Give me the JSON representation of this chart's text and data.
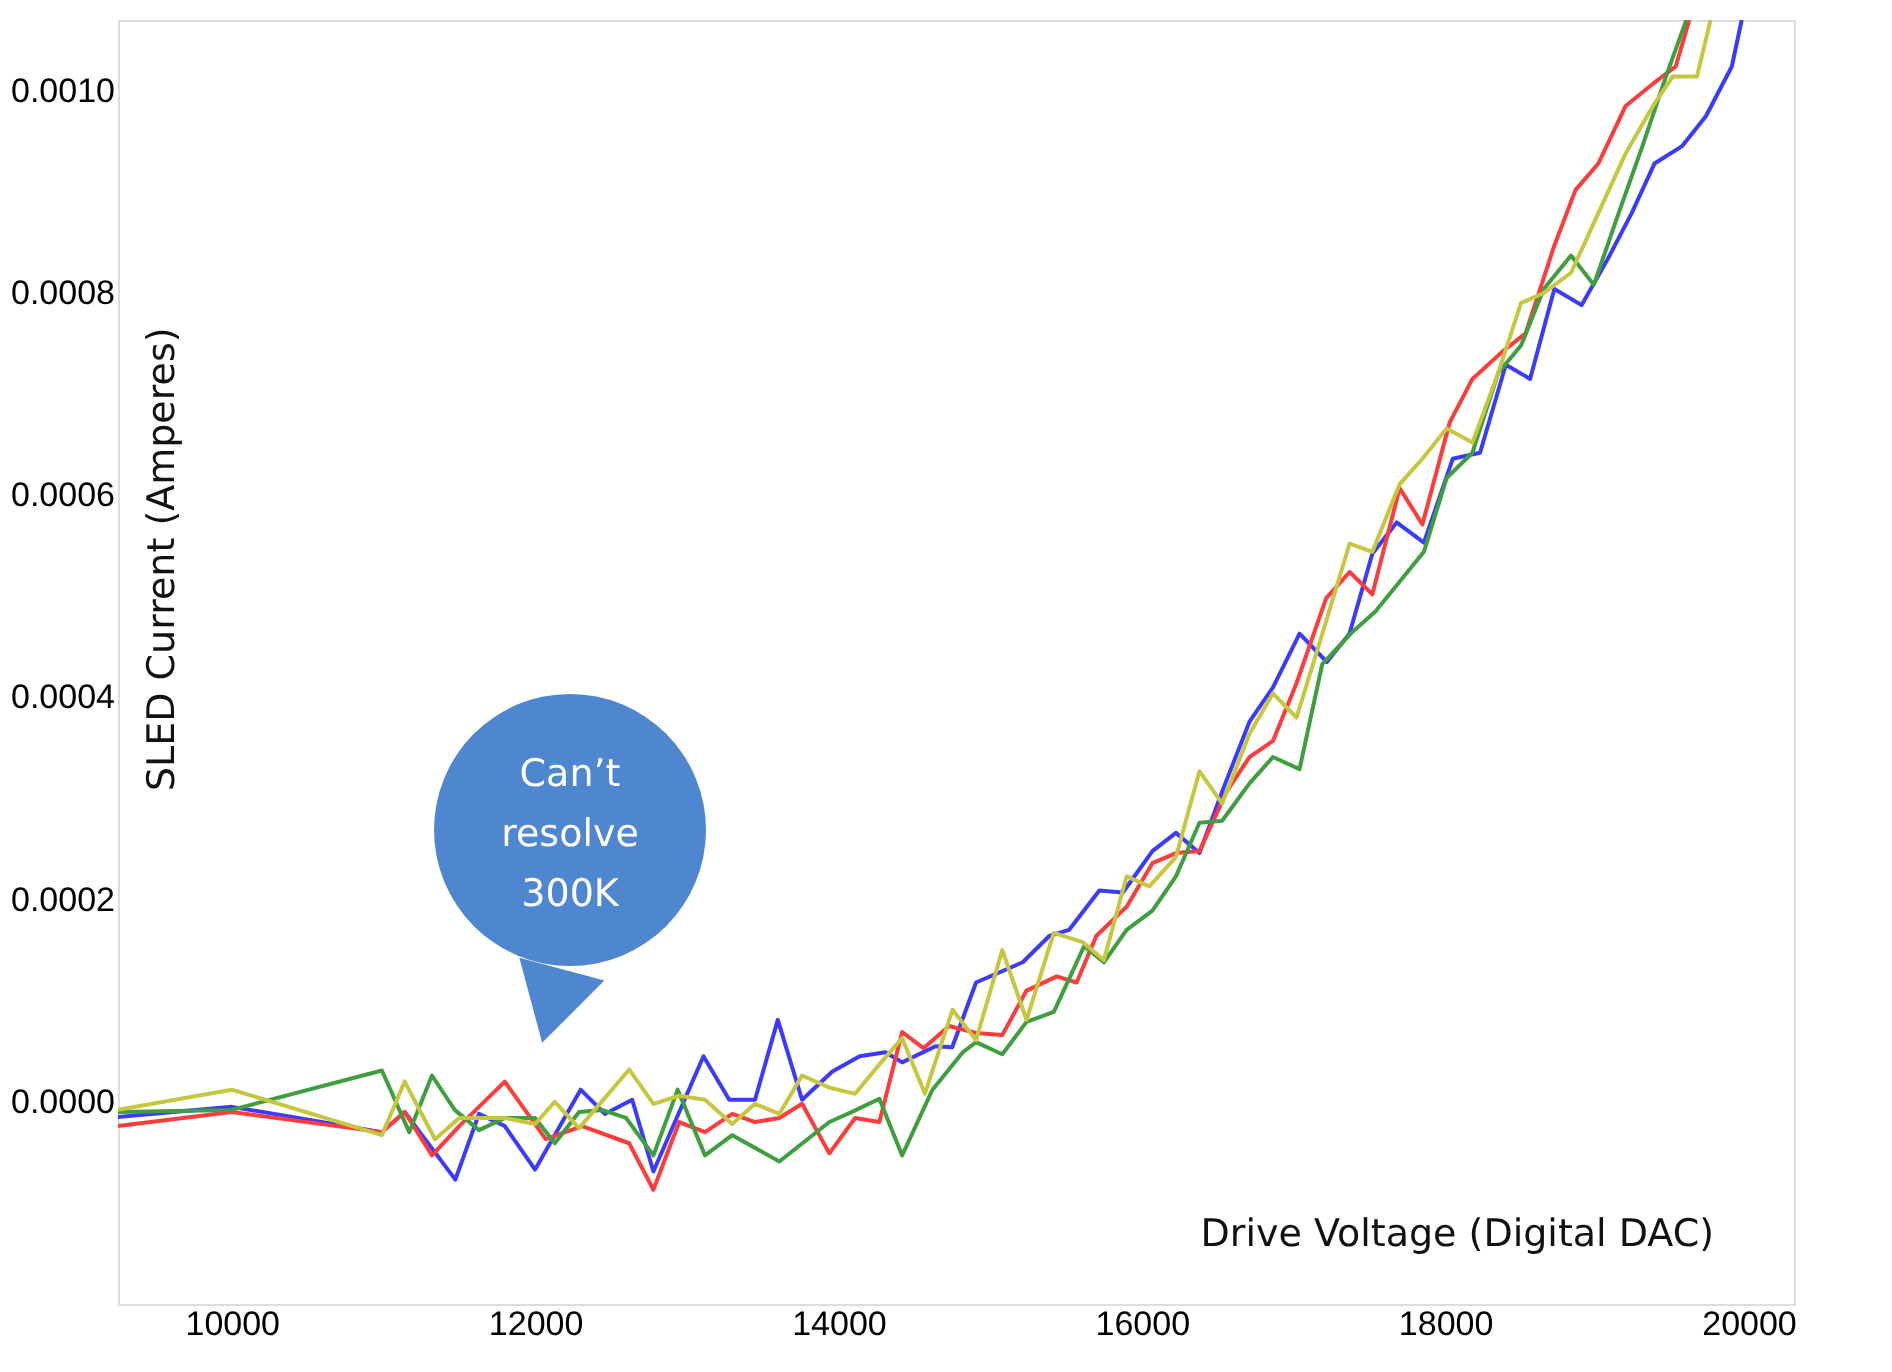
{
  "chart_data": {
    "type": "line",
    "xlabel": "Drive Voltage (Digital DAC)",
    "ylabel": "SLED Current (Amperes)",
    "annotations": [
      "Can’t resolve 300K"
    ],
    "xlim": [
      9250,
      20300
    ],
    "xticks": [
      10000,
      12000,
      14000,
      16000,
      18000,
      20000
    ],
    "ylim": [
      -0.0002,
      0.00107
    ],
    "yticks": [
      {
        "value": 0,
        "label": "0.0000"
      },
      {
        "value": 0.0002,
        "label": "0.0002"
      },
      {
        "value": 0.0004,
        "label": "0.0004"
      },
      {
        "value": 0.0006,
        "label": "0.0006"
      },
      {
        "value": 0.0008,
        "label": "0.0008"
      },
      {
        "value": 0.001,
        "label": "0.0010"
      }
    ],
    "grid": false,
    "marker": "none",
    "line_style": "solid",
    "series": [
      {
        "color": "#3b3bff",
        "x": [
          9250,
          10000,
          10990,
          11140,
          11474,
          11630,
          11800,
          12000,
          12300,
          12460,
          12640,
          12780,
          13110,
          13280,
          13450,
          13600,
          13760,
          13960,
          14140,
          14310,
          14420,
          14640,
          14750,
          14907,
          15215,
          15390,
          15520,
          15720,
          15875,
          16070,
          16225,
          16380,
          16530,
          16710,
          16865,
          17040,
          17220,
          17369,
          17520,
          17680,
          17860,
          18050,
          18230,
          18400,
          18560,
          18720,
          18900,
          19070,
          19230,
          19380,
          19560,
          19720,
          19890,
          19955
        ],
        "values": [
          -1.5e-05,
          -5e-06,
          -3e-05,
          -1e-05,
          -7.7e-05,
          -1.2e-05,
          -2.4e-05,
          -6.7e-05,
          1.2e-05,
          -1.2e-05,
          2e-06,
          -6.9e-05,
          4.5e-05,
          2e-06,
          2e-06,
          8.1e-05,
          2e-06,
          3e-05,
          4.5e-05,
          4.9e-05,
          3.9e-05,
          5.5e-05,
          5.4e-05,
          0.000118,
          0.000138,
          0.000164,
          0.00017,
          0.000209,
          0.000207,
          0.000248,
          0.000266,
          0.000246,
          0.000307,
          0.000376,
          0.00041,
          0.000463,
          0.000435,
          0.000463,
          0.000542,
          0.000573,
          0.000553,
          0.000636,
          0.000642,
          0.000729,
          0.000715,
          0.000804,
          0.000788,
          0.000833,
          0.000879,
          0.000928,
          0.000945,
          0.000975,
          0.001024,
          0.00107
        ]
      },
      {
        "color": "#ff3b3b",
        "x": [
          9250,
          10000,
          10990,
          11140,
          11320,
          11500,
          11800,
          12070,
          12310,
          12620,
          12780,
          12950,
          13120,
          13300,
          13450,
          13610,
          13760,
          13940,
          14110,
          14270,
          14420,
          14560,
          14730,
          14907,
          15080,
          15240,
          15440,
          15570,
          15700,
          15900,
          16070,
          16225,
          16380,
          16560,
          16710,
          16865,
          17020,
          17215,
          17370,
          17520,
          17700,
          17850,
          18030,
          18180,
          18370,
          18530,
          18720,
          18860,
          19010,
          19190,
          19370,
          19520,
          19610
        ],
        "values": [
          -2.4e-05,
          -1e-05,
          -3e-05,
          -1e-05,
          -5.3e-05,
          -2.4e-05,
          2e-05,
          -3.7e-05,
          -2.4e-05,
          -4.1e-05,
          -8.7e-05,
          -2e-05,
          -3e-05,
          -1.2e-05,
          -2e-05,
          -1.6e-05,
          -2e-06,
          -5.1e-05,
          -1.6e-05,
          -2e-05,
          6.9e-05,
          5.3e-05,
          7.5e-05,
          6.8e-05,
          6.6e-05,
          0.00011,
          0.000124,
          0.000118,
          0.000164,
          0.000193,
          0.000236,
          0.000246,
          0.000248,
          0.000307,
          0.000341,
          0.000357,
          0.000414,
          0.000498,
          0.000524,
          0.000502,
          0.000607,
          0.000571,
          0.000672,
          0.000715,
          0.000741,
          0.00076,
          0.000847,
          0.000902,
          0.000928,
          0.000985,
          0.001007,
          0.001024,
          0.00107
        ]
      },
      {
        "color": "#3f9f3f",
        "x": [
          9250,
          10000,
          10990,
          11170,
          11320,
          11470,
          11630,
          11800,
          12000,
          12130,
          12290,
          12440,
          12600,
          12780,
          12940,
          13120,
          13300,
          13610,
          13940,
          14090,
          14270,
          14420,
          14620,
          14820,
          14907,
          15080,
          15240,
          15420,
          15620,
          15750,
          15900,
          16070,
          16225,
          16380,
          16530,
          16710,
          16865,
          17040,
          17190,
          17390,
          17540,
          17860,
          18010,
          18180,
          18350,
          18500,
          18650,
          18830,
          18980,
          19130,
          19300,
          19460,
          19590
        ],
        "values": [
          -1e-05,
          -8e-06,
          3.1e-05,
          -3e-05,
          2.6e-05,
          -8e-06,
          -2.8e-05,
          -1.6e-05,
          -1.6e-05,
          -4.1e-05,
          -1e-05,
          -8e-06,
          -1.6e-05,
          -5.3e-05,
          1.2e-05,
          -5.3e-05,
          -3.3e-05,
          -5.9e-05,
          -2e-05,
          -1e-05,
          3e-06,
          -5.3e-05,
          1.2e-05,
          4.9e-05,
          5.9e-05,
          4.7e-05,
          7.9e-05,
          8.9e-05,
          0.000154,
          0.000138,
          0.00017,
          0.000189,
          0.000223,
          0.000276,
          0.000278,
          0.000315,
          0.000341,
          0.000329,
          0.000433,
          0.000465,
          0.000485,
          0.000544,
          0.000617,
          0.000642,
          0.000721,
          0.000748,
          0.000804,
          0.000837,
          0.000808,
          0.000873,
          0.000945,
          0.001016,
          0.00107
        ]
      },
      {
        "color": "#c6c63f",
        "x": [
          9250,
          10000,
          10990,
          11140,
          11340,
          11500,
          11800,
          12000,
          12130,
          12290,
          12620,
          12780,
          12950,
          13120,
          13300,
          13450,
          13610,
          13760,
          13940,
          14110,
          14270,
          14420,
          14570,
          14752,
          14907,
          15080,
          15240,
          15420,
          15610,
          15750,
          15900,
          16050,
          16225,
          16380,
          16530,
          16710,
          16865,
          17020,
          17170,
          17370,
          17520,
          17700,
          17850,
          18010,
          18180,
          18350,
          18500,
          18650,
          18830,
          19010,
          19190,
          19370,
          19500,
          19660,
          19750
        ],
        "values": [
          -8e-06,
          1.2e-05,
          -3.3e-05,
          2e-05,
          -3.7e-05,
          -1.6e-05,
          -1.6e-05,
          -2.2e-05,
          0,
          -2.6e-05,
          3.2e-05,
          -2e-06,
          6e-06,
          2e-06,
          -2.2e-05,
          -2e-06,
          -1.2e-05,
          2.6e-05,
          1.4e-05,
          8e-06,
          3.7e-05,
          6.3e-05,
          8e-06,
          9.1e-05,
          6.1e-05,
          0.00015,
          8.1e-05,
          0.000167,
          0.000158,
          0.00014,
          0.000223,
          0.000213,
          0.000242,
          0.000327,
          0.000295,
          0.000364,
          0.000404,
          0.00038,
          0.000453,
          0.000552,
          0.000544,
          0.000611,
          0.000636,
          0.000666,
          0.000652,
          0.000721,
          0.00079,
          0.0008,
          0.00082,
          0.000879,
          0.000938,
          0.000985,
          0.001014,
          0.001014,
          0.00107
        ]
      }
    ]
  }
}
